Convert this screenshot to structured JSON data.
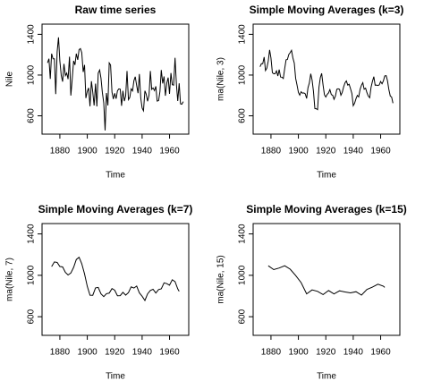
{
  "chart_data": [
    {
      "type": "line",
      "title": "Raw time series",
      "x_label": "Time",
      "y_label": "Nile",
      "color": "#000000",
      "x": [
        1871,
        1872,
        1873,
        1874,
        1875,
        1876,
        1877,
        1878,
        1879,
        1880,
        1881,
        1882,
        1883,
        1884,
        1885,
        1886,
        1887,
        1888,
        1889,
        1890,
        1891,
        1892,
        1893,
        1894,
        1895,
        1896,
        1897,
        1898,
        1899,
        1900,
        1901,
        1902,
        1903,
        1904,
        1905,
        1906,
        1907,
        1908,
        1909,
        1910,
        1911,
        1912,
        1913,
        1914,
        1915,
        1916,
        1917,
        1918,
        1919,
        1920,
        1921,
        1922,
        1923,
        1924,
        1925,
        1926,
        1927,
        1928,
        1929,
        1930,
        1931,
        1932,
        1933,
        1934,
        1935,
        1936,
        1937,
        1938,
        1939,
        1940,
        1941,
        1942,
        1943,
        1944,
        1945,
        1946,
        1947,
        1948,
        1949,
        1950,
        1951,
        1952,
        1953,
        1954,
        1955,
        1956,
        1957,
        1958,
        1959,
        1960,
        1961,
        1962,
        1963,
        1964,
        1965,
        1966,
        1967,
        1968,
        1969,
        1970
      ],
      "values": [
        1120,
        1160,
        963,
        1210,
        1160,
        1160,
        813,
        1230,
        1370,
        1140,
        995,
        935,
        1110,
        994,
        1020,
        960,
        1180,
        799,
        958,
        1140,
        1100,
        1210,
        1150,
        1250,
        1260,
        1220,
        1030,
        1100,
        774,
        840,
        874,
        694,
        940,
        833,
        701,
        916,
        692,
        1020,
        1050,
        969,
        831,
        726,
        456,
        824,
        702,
        1120,
        1100,
        832,
        764,
        821,
        768,
        845,
        864,
        862,
        698,
        845,
        744,
        796,
        1040,
        759,
        781,
        865,
        845,
        944,
        984,
        897,
        822,
        1010,
        771,
        676,
        649,
        846,
        812,
        742,
        801,
        1040,
        860,
        874,
        848,
        890,
        744,
        749,
        838,
        1050,
        918,
        986,
        797,
        923,
        975,
        815,
        1020,
        906,
        901,
        1170,
        912,
        746,
        919,
        718,
        714,
        740
      ],
      "xlim": [
        1867,
        1974
      ],
      "ylim": [
        420,
        1500
      ],
      "xticks": [
        1880,
        1900,
        1920,
        1940,
        1960
      ],
      "yticks": [
        600,
        1000,
        1400
      ]
    },
    {
      "type": "line",
      "title": "Simple Moving Averages (k=3)",
      "x_label": "Time",
      "y_label": "ma(Nile, 3)",
      "color": "#000000",
      "x": [
        1872,
        1873,
        1874,
        1875,
        1876,
        1877,
        1878,
        1879,
        1880,
        1881,
        1882,
        1883,
        1884,
        1885,
        1886,
        1887,
        1888,
        1889,
        1890,
        1891,
        1892,
        1893,
        1894,
        1895,
        1896,
        1897,
        1898,
        1899,
        1900,
        1901,
        1902,
        1903,
        1904,
        1905,
        1906,
        1907,
        1908,
        1909,
        1910,
        1911,
        1912,
        1913,
        1914,
        1915,
        1916,
        1917,
        1918,
        1919,
        1920,
        1921,
        1922,
        1923,
        1924,
        1925,
        1926,
        1927,
        1928,
        1929,
        1930,
        1931,
        1932,
        1933,
        1934,
        1935,
        1936,
        1937,
        1938,
        1939,
        1940,
        1941,
        1942,
        1943,
        1944,
        1945,
        1946,
        1947,
        1948,
        1949,
        1950,
        1951,
        1952,
        1953,
        1954,
        1955,
        1956,
        1957,
        1958,
        1959,
        1960,
        1961,
        1962,
        1963,
        1964,
        1965,
        1966,
        1967,
        1968,
        1969
      ],
      "values": [
        1081,
        1111,
        1111,
        1177,
        1044,
        1068,
        1138,
        1247,
        1168,
        1023,
        1013,
        1013,
        1041,
        991,
        1053,
        980,
        979,
        966,
        1066,
        1150,
        1153,
        1203,
        1220,
        1243,
        1170,
        1117,
        968,
        905,
        829,
        803,
        836,
        822,
        825,
        817,
        770,
        876,
        921,
        1013,
        950,
        842,
        671,
        669,
        661,
        882,
        974,
        1017,
        899,
        806,
        784,
        811,
        826,
        857,
        808,
        802,
        762,
        795,
        860,
        865,
        860,
        802,
        830,
        885,
        924,
        942,
        901,
        910,
        868,
        819,
        699,
        724,
        769,
        800,
        785,
        861,
        900,
        925,
        861,
        871,
        827,
        794,
        777,
        879,
        935,
        985,
        900,
        902,
        898,
        904,
        937,
        914,
        942,
        992,
        994,
        943,
        859,
        794,
        784,
        724
      ],
      "xlim": [
        1867,
        1974
      ],
      "ylim": [
        420,
        1500
      ],
      "xticks": [
        1880,
        1900,
        1920,
        1940,
        1960
      ],
      "yticks": [
        600,
        1000,
        1400
      ]
    },
    {
      "type": "line",
      "title": "Simple Moving Averages (k=7)",
      "x_label": "Time",
      "y_label": "ma(Nile, 7)",
      "color": "#000000",
      "x": [
        1874,
        1876,
        1878,
        1880,
        1882,
        1884,
        1886,
        1888,
        1890,
        1892,
        1894,
        1896,
        1898,
        1900,
        1902,
        1904,
        1906,
        1908,
        1910,
        1912,
        1914,
        1916,
        1918,
        1920,
        1922,
        1924,
        1926,
        1928,
        1930,
        1932,
        1934,
        1936,
        1938,
        1940,
        1942,
        1944,
        1946,
        1948,
        1950,
        1952,
        1954,
        1956,
        1958,
        1960,
        1962,
        1964,
        1966,
        1967
      ],
      "values": [
        1084,
        1129,
        1124,
        1085,
        1081,
        1028,
        1003,
        1022,
        1077,
        1153,
        1174,
        1112,
        1014,
        893,
        808,
        807,
        879,
        883,
        821,
        794,
        823,
        828,
        872,
        856,
        803,
        804,
        836,
        809,
        833,
        888,
        877,
        896,
        830,
        798,
        757,
        821,
        854,
        865,
        829,
        862,
        869,
        927,
        919,
        905,
        957,
        939,
        869,
        846
      ],
      "xlim": [
        1867,
        1974
      ],
      "ylim": [
        420,
        1500
      ],
      "xticks": [
        1880,
        1900,
        1920,
        1940,
        1960
      ],
      "yticks": [
        600,
        1000,
        1400
      ]
    },
    {
      "type": "line",
      "title": "Simple Moving Averages (k=15)",
      "x_label": "Time",
      "y_label": "ma(Nile, 15)",
      "color": "#000000",
      "x": [
        1878,
        1882,
        1886,
        1890,
        1894,
        1898,
        1902,
        1906,
        1910,
        1914,
        1918,
        1922,
        1926,
        1930,
        1934,
        1938,
        1942,
        1946,
        1950,
        1954,
        1958,
        1962,
        1963
      ],
      "values": [
        1092,
        1055,
        1071,
        1092,
        1059,
        998,
        930,
        821,
        859,
        845,
        814,
        853,
        820,
        850,
        839,
        830,
        842,
        809,
        863,
        886,
        914,
        895,
        883
      ],
      "xlim": [
        1867,
        1974
      ],
      "ylim": [
        420,
        1500
      ],
      "xticks": [
        1880,
        1900,
        1920,
        1940,
        1960
      ],
      "yticks": [
        600,
        1000,
        1400
      ]
    }
  ]
}
